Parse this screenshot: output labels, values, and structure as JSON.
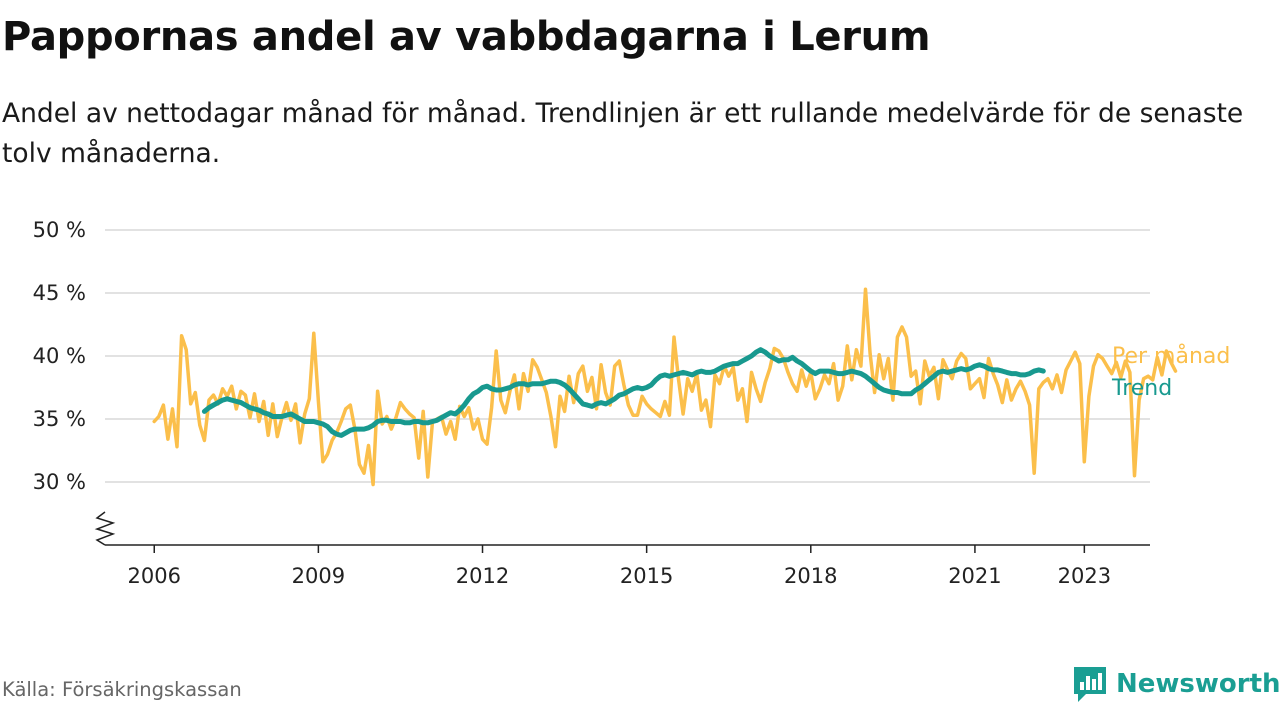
{
  "title": "Pappornas andel av vabbdagarna i Lerum",
  "subtitle": "Andel av nettodagar månad för månad. Trendlinjen är ett rullande medelvärde för de senaste tolv månaderna.",
  "source": "Källa: Försäkringskassan",
  "brand": {
    "name": "Newsworthy",
    "icon": "newsworthy-logo-icon",
    "color": "#1a9e93"
  },
  "chart_data": {
    "type": "line",
    "title": "Pappornas andel av vabbdagarna i Lerum",
    "ylabel": "",
    "xlabel": "",
    "y_ticks": [
      30,
      35,
      40,
      45,
      50
    ],
    "y_tick_labels": [
      "30 %",
      "35 %",
      "40 %",
      "45 %",
      "50 %"
    ],
    "x_ticks": [
      2006,
      2009,
      2012,
      2015,
      2018,
      2021,
      2023
    ],
    "x_tick_labels": [
      "2006",
      "2009",
      "2012",
      "2015",
      "2018",
      "2021",
      "2023"
    ],
    "ylim": [
      25,
      50
    ],
    "xlim": [
      2005.1,
      2024.2
    ],
    "axis_break": true,
    "grid": "horizontal",
    "legend": "labels at line ends",
    "series": [
      {
        "name": "Per månad",
        "color": "#fbbf4b",
        "start": "2006-01",
        "frequency": "monthly",
        "values": [
          34.8,
          35.2,
          36.1,
          33.4,
          35.8,
          32.8,
          41.6,
          40.5,
          36.2,
          37.1,
          34.5,
          33.3,
          36.5,
          36.9,
          36.2,
          37.4,
          36.8,
          37.6,
          35.8,
          37.2,
          36.9,
          35.1,
          37.0,
          34.8,
          36.4,
          33.7,
          36.2,
          33.6,
          35.1,
          36.3,
          34.9,
          36.2,
          33.1,
          35.4,
          36.6,
          41.8,
          36.4,
          31.6,
          32.2,
          33.3,
          33.9,
          34.8,
          35.8,
          36.1,
          34.2,
          31.4,
          30.7,
          32.9,
          29.8,
          37.2,
          34.6,
          35.2,
          34.2,
          35.1,
          36.3,
          35.8,
          35.4,
          35.1,
          31.9,
          35.6,
          30.4,
          34.7,
          35.0,
          35.2,
          33.8,
          34.8,
          33.4,
          36.0,
          35.2,
          35.9,
          34.2,
          35.0,
          33.4,
          33.0,
          35.9,
          40.4,
          36.5,
          35.5,
          37.2,
          38.5,
          35.8,
          38.6,
          37.2,
          39.7,
          39.1,
          38.1,
          37.1,
          35.2,
          32.8,
          36.8,
          35.6,
          38.4,
          36.3,
          38.6,
          39.2,
          37.2,
          38.3,
          35.8,
          39.3,
          37.1,
          36.1,
          39.2,
          39.6,
          37.7,
          36.1,
          35.3,
          35.3,
          36.8,
          36.2,
          35.8,
          35.5,
          35.2,
          36.4,
          35.3,
          41.5,
          38.1,
          35.4,
          38.2,
          37.2,
          38.6,
          35.7,
          36.5,
          34.4,
          38.5,
          37.8,
          39.2,
          38.4,
          39.1,
          36.5,
          37.4,
          34.8,
          38.7,
          37.4,
          36.4,
          37.9,
          39.0,
          40.6,
          40.4,
          39.8,
          38.7,
          37.8,
          37.2,
          38.9,
          37.6,
          38.7,
          36.6,
          37.4,
          38.5,
          37.8,
          39.4,
          36.5,
          37.6,
          40.8,
          38.1,
          40.5,
          39.2,
          45.3,
          40.2,
          37.1,
          40.1,
          38.2,
          39.8,
          36.5,
          41.5,
          42.3,
          41.5,
          38.4,
          38.8,
          36.2,
          39.6,
          38.4,
          39.1,
          36.6,
          39.7,
          38.9,
          38.2,
          39.6,
          40.2,
          39.8,
          37.4,
          37.8,
          38.2,
          36.7,
          39.8,
          38.6,
          37.7,
          36.3,
          38.1,
          36.5,
          37.4,
          38.0,
          37.2,
          36.1,
          30.7,
          37.4,
          37.9,
          38.2,
          37.4,
          38.5,
          37.1,
          38.9,
          39.6,
          40.3,
          39.4,
          31.6,
          36.8,
          39.2,
          40.1,
          39.8,
          39.2,
          38.6,
          39.5,
          38.3,
          39.6,
          38.7,
          30.5,
          36.5,
          38.2,
          38.4,
          38.1,
          39.9,
          38.5,
          40.4,
          39.5,
          38.8
        ]
      },
      {
        "name": "Trend",
        "color": "#18998f",
        "start": "2006-12",
        "frequency": "monthly",
        "values": [
          35.6,
          35.9,
          36.1,
          36.3,
          36.5,
          36.6,
          36.5,
          36.4,
          36.3,
          36.1,
          35.9,
          35.8,
          35.7,
          35.5,
          35.4,
          35.2,
          35.2,
          35.2,
          35.3,
          35.4,
          35.2,
          35.0,
          34.8,
          34.8,
          34.8,
          34.7,
          34.6,
          34.4,
          34.0,
          33.8,
          33.7,
          33.9,
          34.1,
          34.2,
          34.2,
          34.2,
          34.3,
          34.5,
          34.8,
          34.9,
          34.9,
          34.8,
          34.8,
          34.8,
          34.7,
          34.7,
          34.8,
          34.8,
          34.7,
          34.7,
          34.8,
          34.9,
          35.1,
          35.3,
          35.5,
          35.4,
          35.7,
          36.1,
          36.6,
          37.0,
          37.2,
          37.5,
          37.6,
          37.4,
          37.3,
          37.3,
          37.4,
          37.5,
          37.7,
          37.8,
          37.8,
          37.7,
          37.8,
          37.8,
          37.8,
          37.9,
          38.0,
          38.0,
          37.9,
          37.7,
          37.4,
          37.0,
          36.6,
          36.2,
          36.1,
          36.0,
          36.2,
          36.3,
          36.2,
          36.4,
          36.6,
          36.9,
          37.0,
          37.2,
          37.4,
          37.5,
          37.4,
          37.5,
          37.7,
          38.1,
          38.4,
          38.5,
          38.4,
          38.5,
          38.6,
          38.7,
          38.6,
          38.5,
          38.7,
          38.8,
          38.7,
          38.7,
          38.8,
          39.0,
          39.2,
          39.3,
          39.4,
          39.4,
          39.6,
          39.8,
          40.0,
          40.3,
          40.5,
          40.3,
          40.0,
          39.8,
          39.6,
          39.7,
          39.7,
          39.9,
          39.6,
          39.4,
          39.1,
          38.8,
          38.6,
          38.8,
          38.8,
          38.8,
          38.7,
          38.6,
          38.6,
          38.7,
          38.8,
          38.7,
          38.6,
          38.4,
          38.1,
          37.8,
          37.5,
          37.3,
          37.2,
          37.1,
          37.1,
          37.0,
          37.0,
          37.0,
          37.3,
          37.5,
          37.8,
          38.1,
          38.4,
          38.7,
          38.8,
          38.7,
          38.8,
          38.9,
          39.0,
          38.9,
          39.0,
          39.2,
          39.3,
          39.2,
          39.0,
          38.9,
          38.9,
          38.8,
          38.7,
          38.6,
          38.6,
          38.5,
          38.5,
          38.6,
          38.8,
          38.9,
          38.8
        ]
      }
    ]
  }
}
